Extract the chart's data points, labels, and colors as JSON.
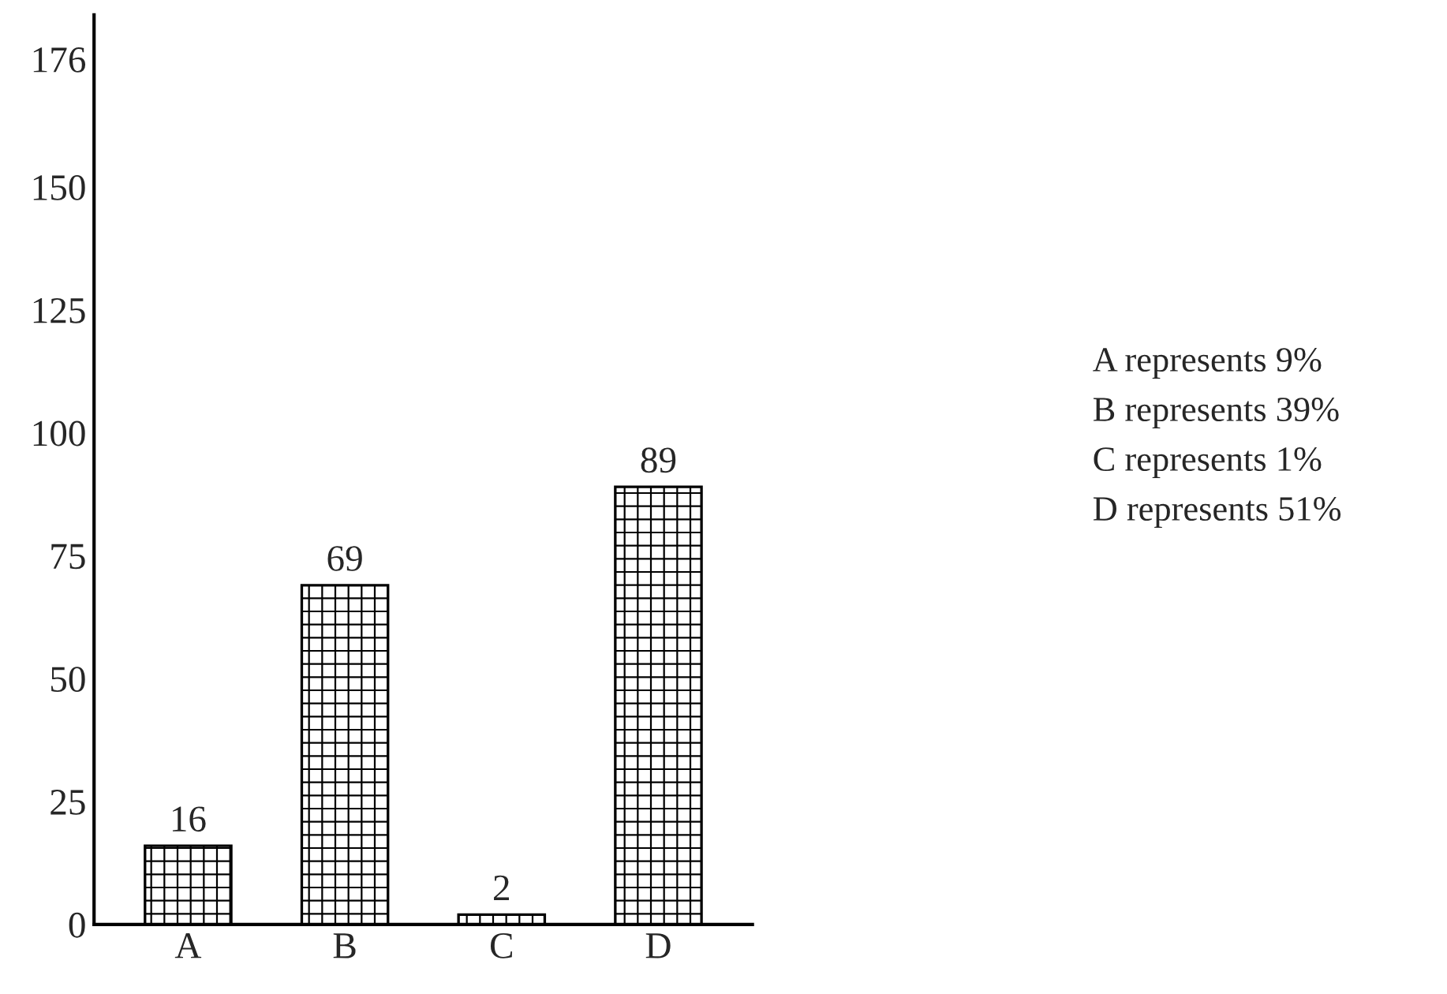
{
  "chart_data": {
    "type": "bar",
    "categories": [
      "A",
      "B",
      "C",
      "D"
    ],
    "values": [
      16,
      69,
      2,
      89
    ],
    "color": "#000000",
    "ylim": [
      0,
      185
    ],
    "yticks": [
      0,
      25,
      50,
      75,
      100,
      125,
      150,
      176
    ],
    "data_labels": true,
    "grid": false,
    "legend": false,
    "annotations": [
      "A represents 9%",
      "B represents 39%",
      "C represents 1%",
      "D represents 51%"
    ]
  }
}
